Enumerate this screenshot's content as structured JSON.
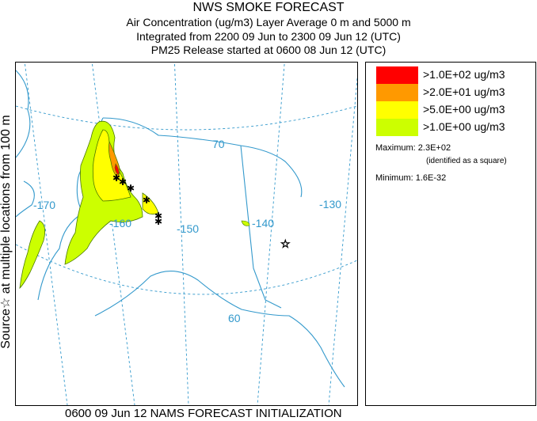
{
  "header": {
    "line1": "NWS SMOKE FORECAST",
    "line2": "Air Concentration (ug/m3) Layer Average     0 m and  5000 m",
    "line3": "Integrated from 2200 09 Jun to 2300 09 Jun 12 (UTC)",
    "line4": "PM25 Release started at 0600 08 Jun 12 (UTC)"
  },
  "side_label": "Source☆ at multiple locations  from  100 m",
  "footer": "0600 09 Jun 12 NAMS FORECAST INITIALIZATION",
  "map": {
    "lat_labels": [
      "70",
      "60"
    ],
    "lon_labels": [
      "-170",
      "-160",
      "-150",
      "-140",
      "-130"
    ],
    "grid_color": "#3399cc",
    "coast_color": "#3399cc"
  },
  "legend": {
    "items": [
      {
        "label": ">1.0E+02 ug/m3",
        "color": "#ff0000"
      },
      {
        "label": ">2.0E+01 ug/m3",
        "color": "#ff9900"
      },
      {
        "label": ">5.0E+00 ug/m3",
        "color": "#ffff00"
      },
      {
        "label": ">1.0E+00 ug/m3",
        "color": "#ccff00"
      }
    ],
    "maximum": "Maximum: 2.3E+02",
    "maximum_note": "(identified as a square)",
    "minimum": "Minimum: 1.6E-32"
  }
}
